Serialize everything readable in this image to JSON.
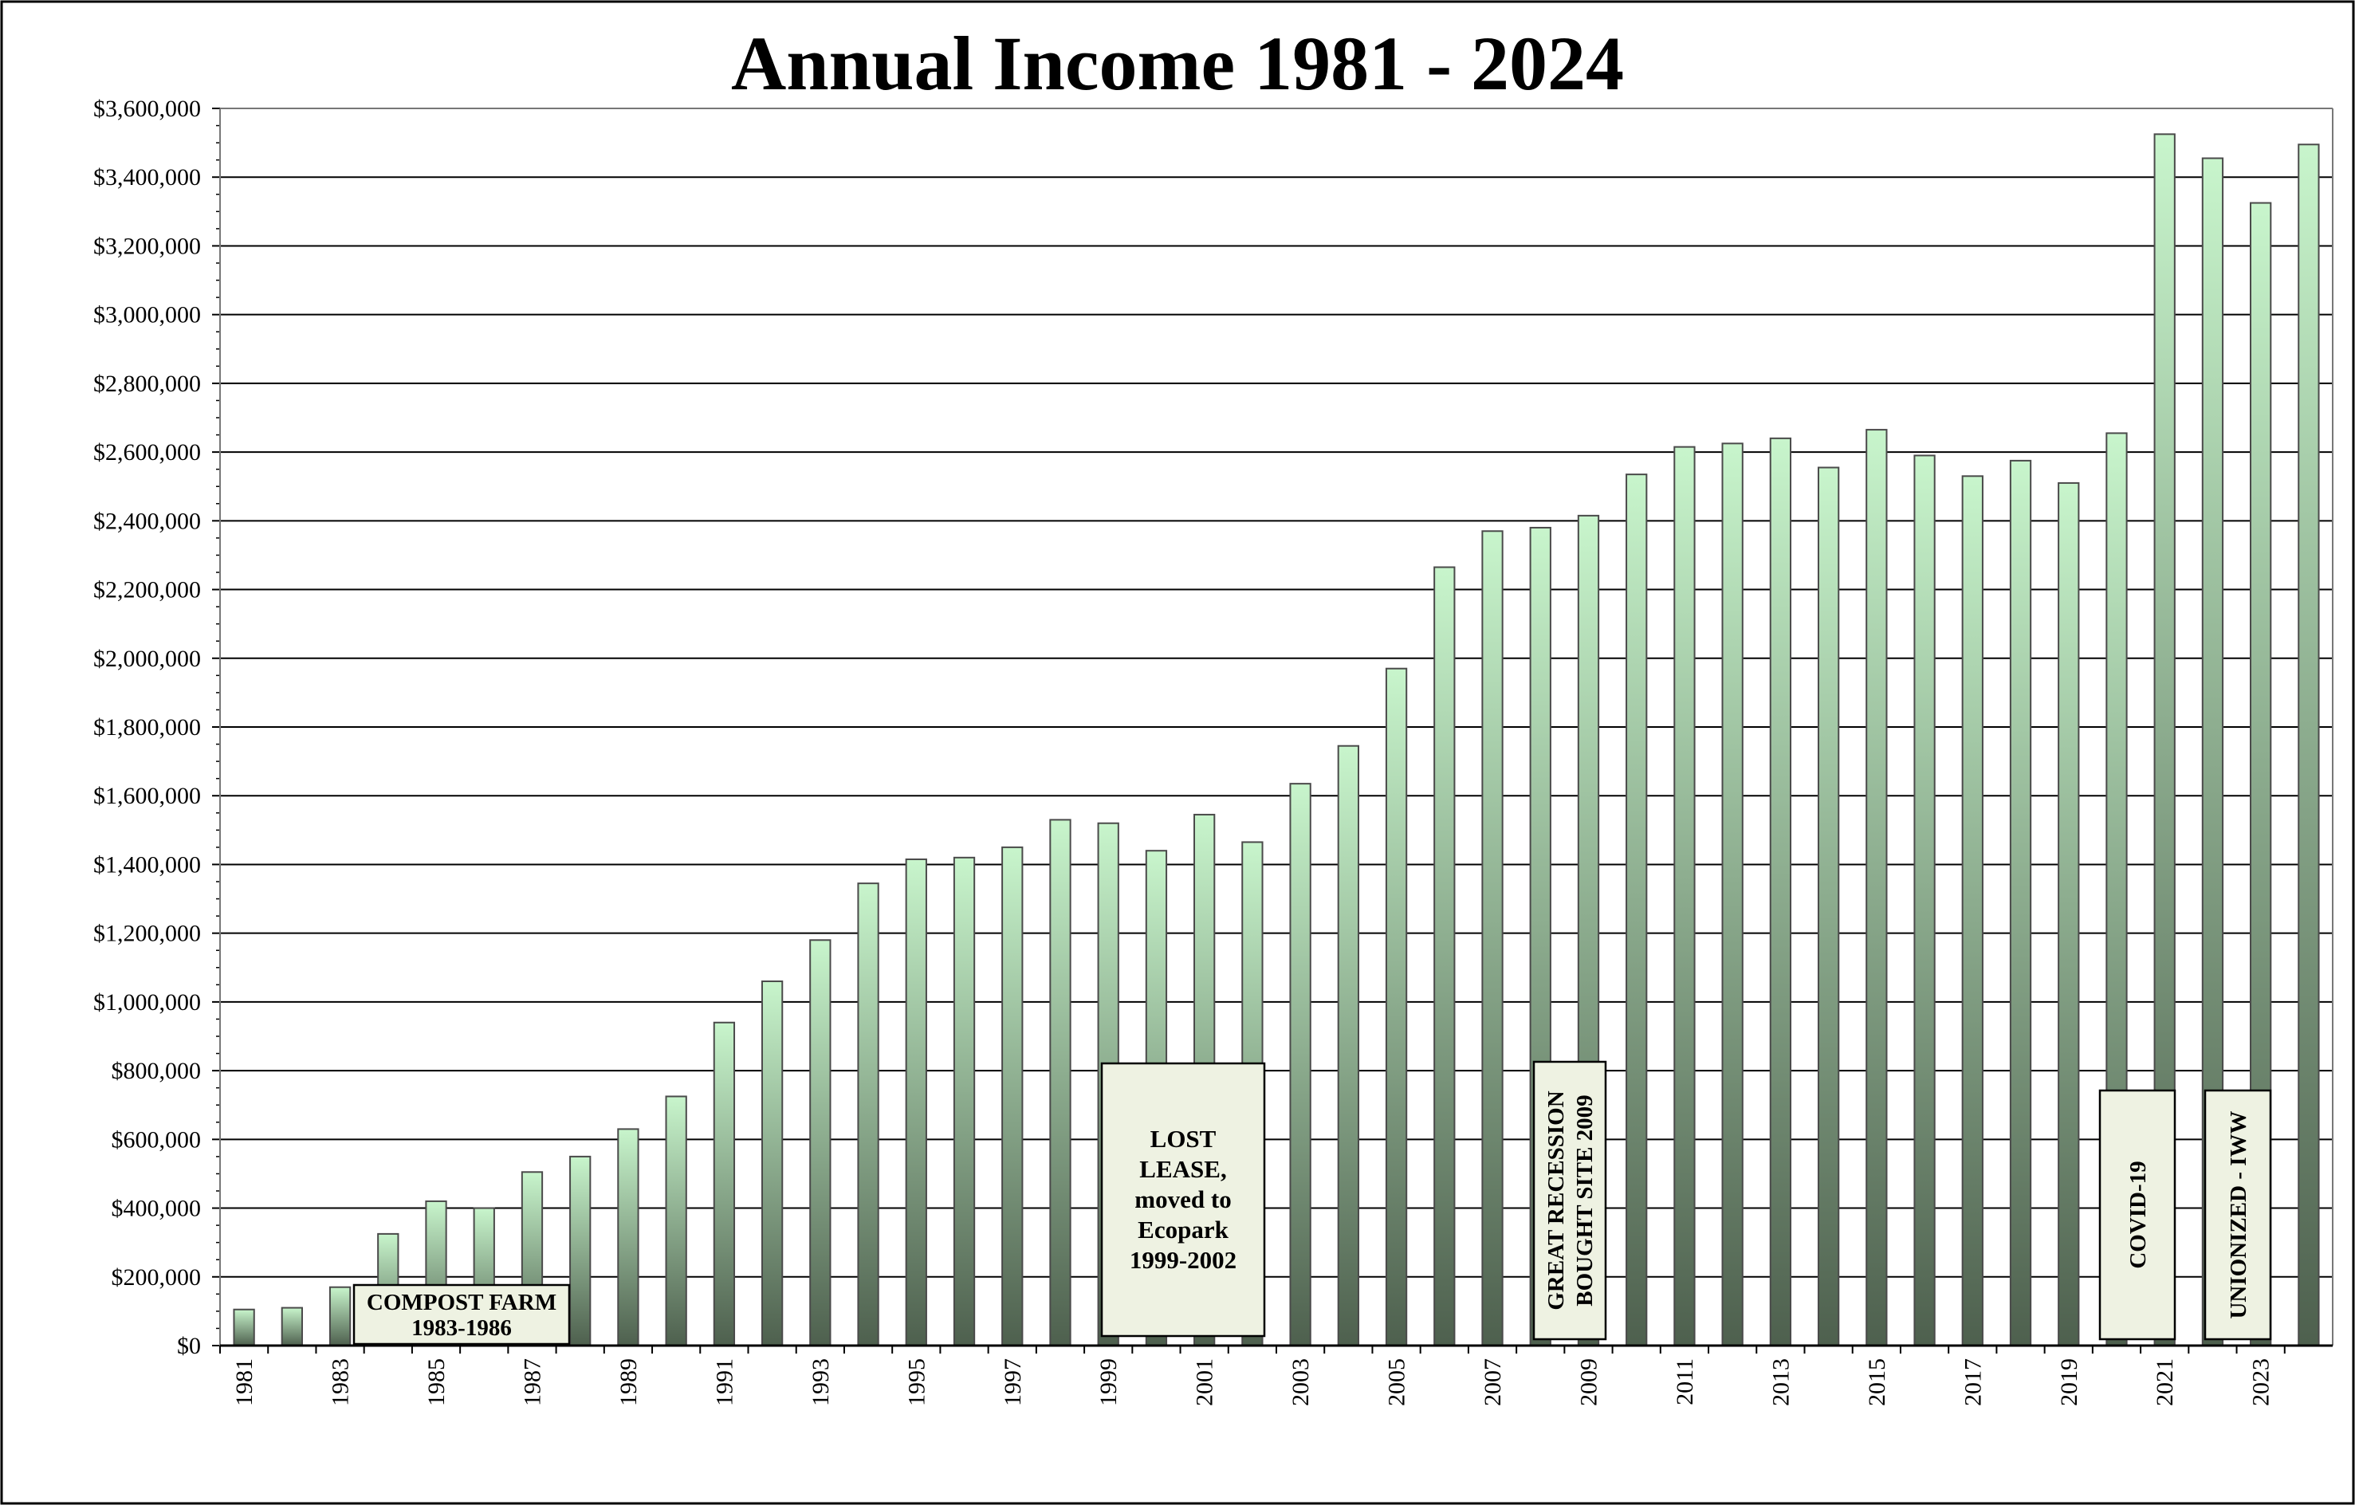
{
  "chart_data": {
    "type": "bar",
    "title": "Annual Income 1981 - 2024",
    "xlabel": "",
    "ylabel": "",
    "ylim": [
      0,
      3600000
    ],
    "ytick_step": 200000,
    "ytick_labels": [
      "$0",
      "$200,000",
      "$400,000",
      "$600,000",
      "$800,000",
      "$1,000,000",
      "$1,200,000",
      "$1,400,000",
      "$1,600,000",
      "$1,800,000",
      "$2,000,000",
      "$2,200,000",
      "$2,400,000",
      "$2,600,000",
      "$2,800,000",
      "$3,000,000",
      "$3,200,000",
      "$3,400,000",
      "$3,600,000"
    ],
    "grid": true,
    "legend": "none",
    "categories": [
      "1981",
      "1982",
      "1983",
      "1984",
      "1985",
      "1986",
      "1987",
      "1988",
      "1989",
      "1990",
      "1991",
      "1992",
      "1993",
      "1994",
      "1995",
      "1996",
      "1997",
      "1998",
      "1999",
      "2000",
      "2001",
      "2002",
      "2003",
      "2004",
      "2005",
      "2006",
      "2007",
      "2008",
      "2009",
      "2010",
      "2011",
      "2012",
      "2013",
      "2014",
      "2015",
      "2016",
      "2017",
      "2018",
      "2019",
      "2020",
      "2021",
      "2022",
      "2023",
      "2024"
    ],
    "values": [
      105000,
      110000,
      170000,
      325000,
      420000,
      400000,
      505000,
      550000,
      630000,
      725000,
      940000,
      1060000,
      1180000,
      1345000,
      1415000,
      1420000,
      1450000,
      1530000,
      1520000,
      1440000,
      1545000,
      1465000,
      1635000,
      1745000,
      1970000,
      2265000,
      2370000,
      2380000,
      2415000,
      2535000,
      2615000,
      2625000,
      2640000,
      2555000,
      2665000,
      2590000,
      2530000,
      2575000,
      2510000,
      2655000,
      3525000,
      3455000,
      3325000,
      3495000
    ],
    "xtick_labels": [
      "1981",
      "1983",
      "1985",
      "1987",
      "1989",
      "1991",
      "1993",
      "1995",
      "1997",
      "1999",
      "2001",
      "2003",
      "2005",
      "2007",
      "2009",
      "2011",
      "2013",
      "2015",
      "2017",
      "2019",
      "2021",
      "2023"
    ],
    "annotations": [
      {
        "id": "compost-farm",
        "lines": [
          "COMPOST FARM",
          "1983-1986"
        ],
        "orientation": "horizontal"
      },
      {
        "id": "lost-lease",
        "lines": [
          "LOST",
          "LEASE,",
          "moved to",
          "Ecopark",
          "1999-2002"
        ],
        "orientation": "horizontal"
      },
      {
        "id": "great-recession",
        "lines": [
          "GREAT RECESSION",
          "BOUGHT SITE 2009"
        ],
        "orientation": "vertical"
      },
      {
        "id": "covid",
        "lines": [
          "COVID-19"
        ],
        "orientation": "vertical"
      },
      {
        "id": "unionized",
        "lines": [
          "UNIONIZED - IWW"
        ],
        "orientation": "vertical"
      }
    ],
    "colors": {
      "bar_top": "#c8f5cc",
      "bar_bottom": "#4e604e",
      "bar_stroke": "#4a4a4a",
      "annotation_fill": "#eef2e2",
      "grid": "#000000"
    }
  }
}
